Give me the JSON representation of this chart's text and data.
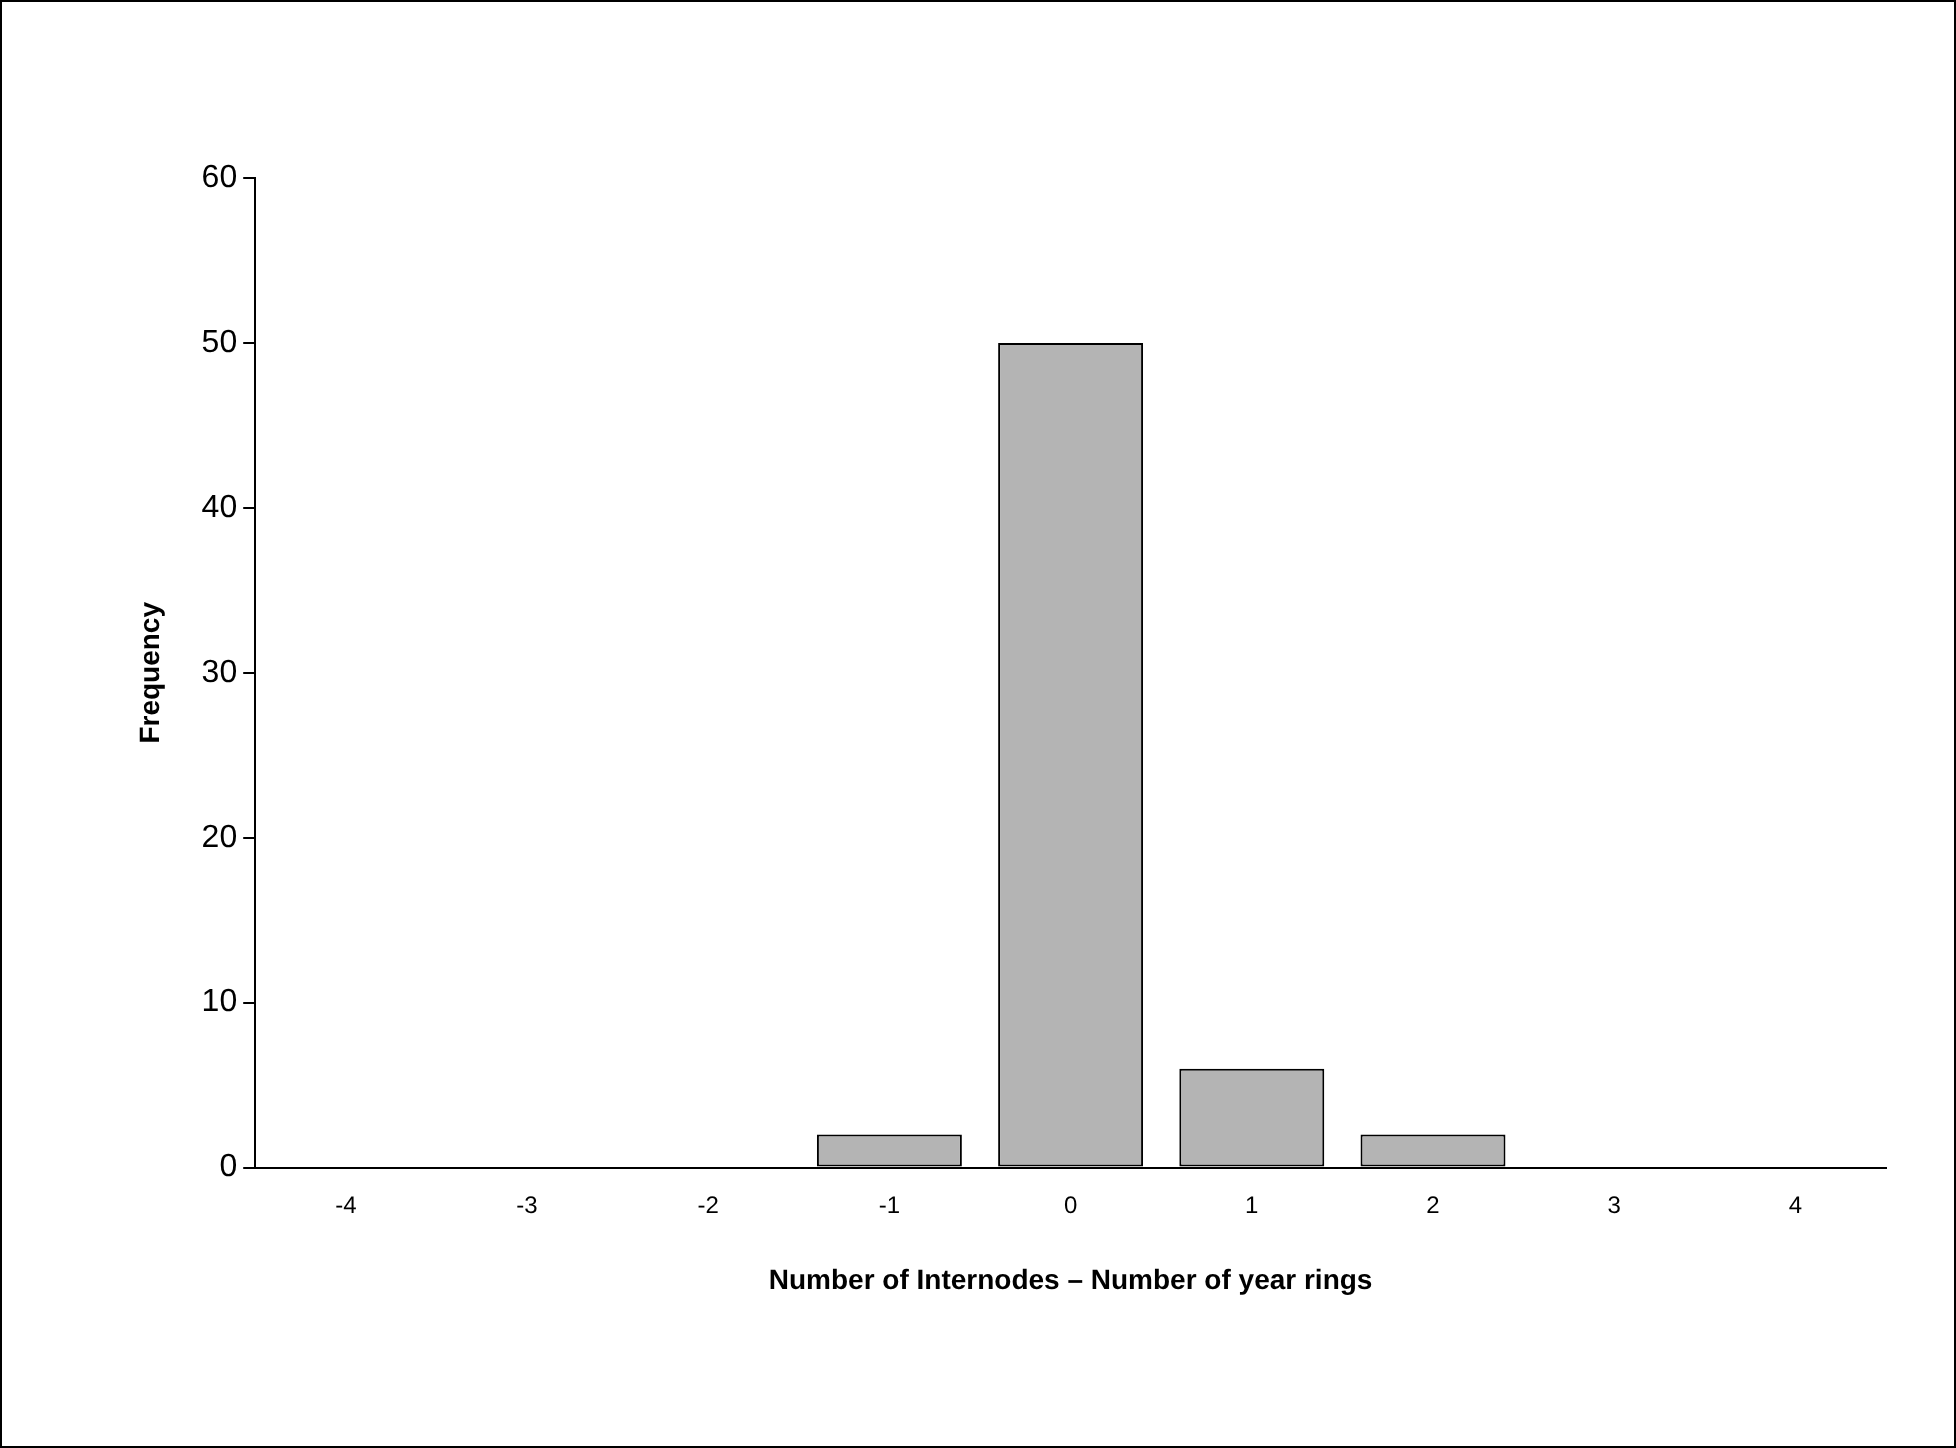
{
  "chart_data": {
    "type": "bar",
    "xlabel": "Number of Internodes – Number of year rings",
    "ylabel": "Frequency",
    "categories": [
      "-4",
      "-3",
      "-2",
      "-1",
      "0",
      "1",
      "2",
      "3",
      "4"
    ],
    "values": [
      0,
      0,
      0,
      2,
      50,
      6,
      2,
      0,
      0
    ],
    "color": "#b4b4b4",
    "ylim": [
      0,
      60
    ],
    "yticks": [
      0,
      10,
      20,
      30,
      40,
      50,
      60
    ]
  }
}
